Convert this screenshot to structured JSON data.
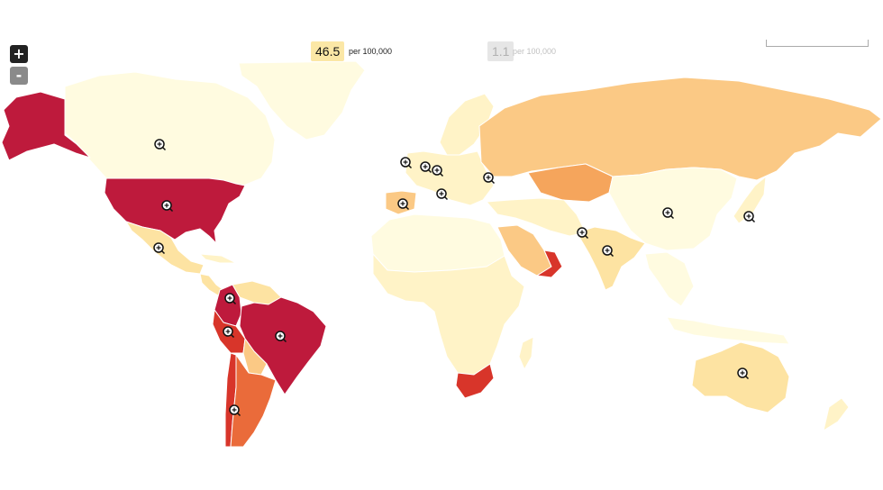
{
  "zoom": {
    "in_label": "+",
    "out_label": "-"
  },
  "legend": {
    "max_value": "46.5",
    "max_unit": "per 100,000",
    "min_value": "1.1",
    "min_unit": "per 100,000"
  },
  "colors": {
    "lvl0": "#fffbe0",
    "lvl1": "#fff3c7",
    "lvl2": "#fde3a2",
    "lvl3": "#fbc985",
    "lvl4": "#f5a55c",
    "lvl5": "#ea6b3a",
    "lvl6": "#d8352a",
    "lvl7": "#be1a3c",
    "nodata": "#e4e4e4",
    "border": "#ffffff",
    "ocean": "#ffffff"
  },
  "countries": [
    {
      "name": "alaska",
      "level": "lvl7"
    },
    {
      "name": "canada",
      "level": "lvl0"
    },
    {
      "name": "greenland",
      "level": "lvl0"
    },
    {
      "name": "united-states",
      "level": "lvl7"
    },
    {
      "name": "mexico",
      "level": "lvl2"
    },
    {
      "name": "central-america",
      "level": "lvl2"
    },
    {
      "name": "cuba",
      "level": "lvl1"
    },
    {
      "name": "venezuela",
      "level": "lvl2"
    },
    {
      "name": "colombia",
      "level": "lvl7"
    },
    {
      "name": "peru",
      "level": "lvl6"
    },
    {
      "name": "brazil",
      "level": "lvl7"
    },
    {
      "name": "bolivia",
      "level": "lvl3"
    },
    {
      "name": "chile",
      "level": "lvl6"
    },
    {
      "name": "argentina",
      "level": "lvl5"
    },
    {
      "name": "russia",
      "level": "lvl3"
    },
    {
      "name": "europe",
      "level": "lvl1"
    },
    {
      "name": "scandinavia",
      "level": "lvl1"
    },
    {
      "name": "spain",
      "level": "lvl3"
    },
    {
      "name": "kazakhstan",
      "level": "lvl4"
    },
    {
      "name": "china",
      "level": "lvl0"
    },
    {
      "name": "india",
      "level": "lvl2"
    },
    {
      "name": "middle-east",
      "level": "lvl1"
    },
    {
      "name": "saudi-arabia",
      "level": "lvl3"
    },
    {
      "name": "oman",
      "level": "lvl6"
    },
    {
      "name": "north-africa",
      "level": "lvl0"
    },
    {
      "name": "africa",
      "level": "lvl1"
    },
    {
      "name": "south-africa",
      "level": "lvl6"
    },
    {
      "name": "southeast-asia",
      "level": "lvl0"
    },
    {
      "name": "indonesia",
      "level": "lvl0"
    },
    {
      "name": "japan",
      "level": "lvl1"
    },
    {
      "name": "australia",
      "level": "lvl2"
    },
    {
      "name": "new-zealand",
      "level": "lvl1"
    }
  ]
}
